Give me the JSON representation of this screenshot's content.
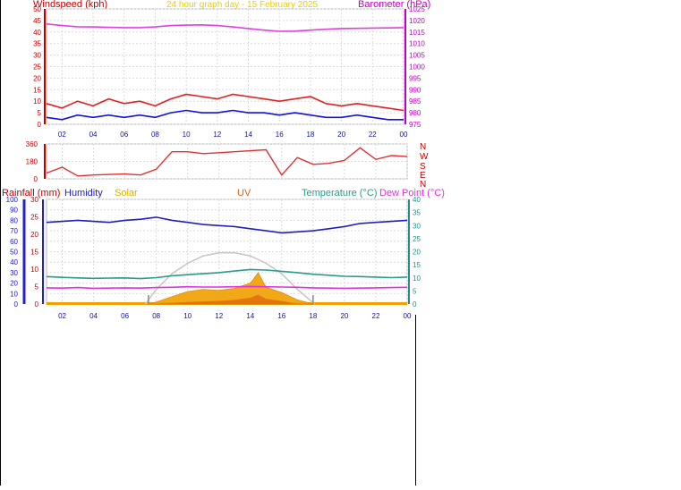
{
  "header": {
    "left_label": "Windspeed (kph)",
    "center_label": "24 hour graph day - 15 February 2025",
    "right_label": "Barometer (hPa)"
  },
  "compass": [
    "N",
    "W",
    "S",
    "E",
    "N"
  ],
  "lower_labels": {
    "rainfall": "Rainfall (mm)",
    "humidity": "Humidity",
    "solar": "Solar",
    "uv": "UV",
    "temperature": "Temperature (°C)",
    "dewpoint": "Dew Point (°C)"
  },
  "colors": {
    "windspeed": "#e02020",
    "gust": "#e02020",
    "wind_avg": "#1010e0",
    "barometer": "#e040e0",
    "direction": "#e03030",
    "humidity": "#2020c0",
    "temperature": "#2a9a8a",
    "dewpoint": "#e030e0",
    "solar_fill": "#f0a000",
    "solar_theoretical": "#c8c8c8",
    "uv_fill": "#e06010",
    "header_left": "#c00000",
    "header_center": "#e8d000",
    "header_right": "#c000c0",
    "rain_axis": "#2020d0",
    "temp_axis": "#2a8a8a"
  },
  "chart_data": [
    {
      "type": "line",
      "name": "wind-baro",
      "x_tick_labels": [
        "02",
        "04",
        "06",
        "08",
        "10",
        "12",
        "14",
        "16",
        "18",
        "20",
        "22",
        "00"
      ],
      "xlim": [
        1,
        24
      ],
      "left_axis": {
        "ylim": [
          0,
          50
        ],
        "ticks": [
          "0",
          "5",
          "10",
          "15",
          "20",
          "25",
          "30",
          "35",
          "40",
          "45",
          "50"
        ]
      },
      "right_axis": {
        "ylim": [
          975,
          1025
        ],
        "ticks": [
          "975",
          "980",
          "985",
          "990",
          "995",
          "1000",
          "1005",
          "1010",
          "1015",
          "1020",
          "1025"
        ]
      },
      "series": [
        {
          "name": "Windspeed (kph)",
          "axis": "left",
          "x": [
            1,
            2,
            3,
            4,
            5,
            6,
            7,
            8,
            9,
            10,
            11,
            12,
            13,
            14,
            15,
            16,
            17,
            18,
            19,
            20,
            21,
            22,
            23,
            24
          ],
          "y": [
            9,
            7,
            10,
            8,
            11,
            9,
            10,
            8,
            11,
            13,
            12,
            11,
            13,
            12,
            11,
            10,
            11,
            12,
            9,
            8,
            9,
            8,
            7,
            6
          ]
        },
        {
          "name": "Wind average",
          "axis": "left",
          "x": [
            1,
            2,
            3,
            4,
            5,
            6,
            7,
            8,
            9,
            10,
            11,
            12,
            13,
            14,
            15,
            16,
            17,
            18,
            19,
            20,
            21,
            22,
            23,
            24
          ],
          "y": [
            3,
            2,
            4,
            3,
            4,
            3,
            4,
            3,
            5,
            6,
            5,
            5,
            6,
            5,
            5,
            4,
            5,
            4,
            3,
            3,
            4,
            3,
            2,
            2
          ]
        },
        {
          "name": "Barometer (hPa)",
          "axis": "right",
          "x": [
            1,
            2,
            3,
            4,
            5,
            6,
            7,
            8,
            9,
            10,
            11,
            12,
            13,
            14,
            15,
            16,
            17,
            18,
            19,
            20,
            21,
            22,
            23,
            24
          ],
          "y": [
            1018.5,
            1017.8,
            1017.3,
            1017.2,
            1017.0,
            1016.9,
            1016.9,
            1017.2,
            1017.8,
            1018.0,
            1018.1,
            1017.8,
            1017.2,
            1016.5,
            1015.8,
            1015.3,
            1015.4,
            1015.8,
            1016.2,
            1016.5,
            1016.6,
            1016.7,
            1016.8,
            1016.9
          ]
        }
      ]
    },
    {
      "type": "line",
      "name": "wind-direction",
      "x_tick_labels": [
        "02",
        "04",
        "06",
        "08",
        "10",
        "12",
        "14",
        "16",
        "18",
        "20",
        "22",
        "00"
      ],
      "xlim": [
        1,
        24
      ],
      "ylim": [
        0,
        360
      ],
      "y_ticks": [
        "0",
        "180",
        "360"
      ],
      "series": [
        {
          "name": "Wind direction",
          "x": [
            1,
            2,
            3,
            4,
            5,
            6,
            7,
            8,
            9,
            10,
            11,
            12,
            13,
            14,
            15,
            16,
            17,
            18,
            19,
            20,
            21,
            22,
            23,
            24
          ],
          "y": [
            60,
            120,
            30,
            40,
            45,
            50,
            40,
            100,
            280,
            280,
            260,
            270,
            280,
            290,
            300,
            40,
            220,
            150,
            160,
            190,
            320,
            200,
            240,
            230
          ]
        }
      ]
    },
    {
      "type": "line",
      "name": "rain-temp",
      "x_tick_labels": [
        "02",
        "04",
        "06",
        "08",
        "10",
        "12",
        "14",
        "16",
        "18",
        "20",
        "22",
        "00"
      ],
      "xlim": [
        1,
        24
      ],
      "humidity_axis": {
        "ylim": [
          0,
          100
        ],
        "ticks": [
          "0",
          "10",
          "20",
          "30",
          "40",
          "50",
          "60",
          "70",
          "80",
          "90",
          "100"
        ]
      },
      "rain_axis": {
        "ylim": [
          0,
          30
        ],
        "ticks": [
          "0",
          "5",
          "10",
          "15",
          "20",
          "25",
          "30"
        ]
      },
      "temp_axis": {
        "ylim": [
          0,
          40
        ],
        "ticks": [
          "0",
          "5",
          "10",
          "15",
          "20",
          "25",
          "30",
          "35",
          "40"
        ]
      },
      "series": [
        {
          "name": "Humidity",
          "axis": "humidity",
          "x": [
            1,
            2,
            3,
            4,
            5,
            6,
            7,
            8,
            9,
            10,
            11,
            12,
            13,
            14,
            15,
            16,
            17,
            18,
            19,
            20,
            21,
            22,
            23,
            24
          ],
          "y": [
            78,
            79,
            80,
            79,
            78,
            80,
            81,
            83,
            80,
            78,
            76,
            75,
            74,
            72,
            70,
            68,
            69,
            70,
            72,
            74,
            77,
            78,
            79,
            80
          ]
        },
        {
          "name": "Temperature (°C)",
          "axis": "temp",
          "x": [
            1,
            2,
            3,
            4,
            5,
            6,
            7,
            8,
            9,
            10,
            11,
            12,
            13,
            14,
            15,
            16,
            17,
            18,
            19,
            20,
            21,
            22,
            23,
            24
          ],
          "y": [
            10.5,
            10.2,
            10.0,
            9.8,
            9.9,
            10.0,
            9.7,
            10.1,
            10.8,
            11.2,
            11.6,
            12.0,
            12.6,
            13.2,
            13.0,
            12.5,
            12.0,
            11.4,
            11.0,
            10.6,
            10.5,
            10.3,
            10.1,
            10.3
          ]
        },
        {
          "name": "Dew Point (°C)",
          "axis": "temp",
          "x": [
            1,
            2,
            3,
            4,
            5,
            6,
            7,
            8,
            9,
            10,
            11,
            12,
            13,
            14,
            15,
            16,
            17,
            18,
            19,
            20,
            21,
            22,
            23,
            24
          ],
          "y": [
            6.2,
            6.1,
            6.3,
            6.0,
            6.1,
            6.2,
            6.1,
            6.3,
            6.4,
            6.6,
            6.5,
            6.5,
            6.6,
            6.7,
            6.6,
            6.5,
            6.4,
            6.2,
            6.1,
            6.0,
            6.1,
            6.2,
            6.3,
            6.4
          ]
        },
        {
          "name": "Solar",
          "axis": "humidity",
          "x": [
            7.5,
            8,
            9,
            10,
            11,
            12,
            13,
            14,
            14.5,
            15,
            16,
            17,
            18
          ],
          "y": [
            0,
            2,
            7,
            12,
            14,
            13,
            15,
            20,
            30,
            16,
            11,
            4,
            0
          ]
        },
        {
          "name": "Solar theoretical",
          "axis": "humidity",
          "x": [
            7.3,
            8,
            9,
            10,
            11,
            12,
            13,
            14,
            15,
            16,
            17,
            18.1
          ],
          "y": [
            0,
            14,
            29,
            39,
            46,
            49,
            49,
            46,
            39,
            29,
            14,
            0
          ]
        },
        {
          "name": "UV",
          "axis": "humidity",
          "x": [
            8,
            10,
            12,
            13,
            14,
            14.5,
            15,
            16,
            17
          ],
          "y": [
            0,
            2,
            3,
            4,
            6,
            9,
            5,
            3,
            0
          ]
        }
      ]
    }
  ]
}
